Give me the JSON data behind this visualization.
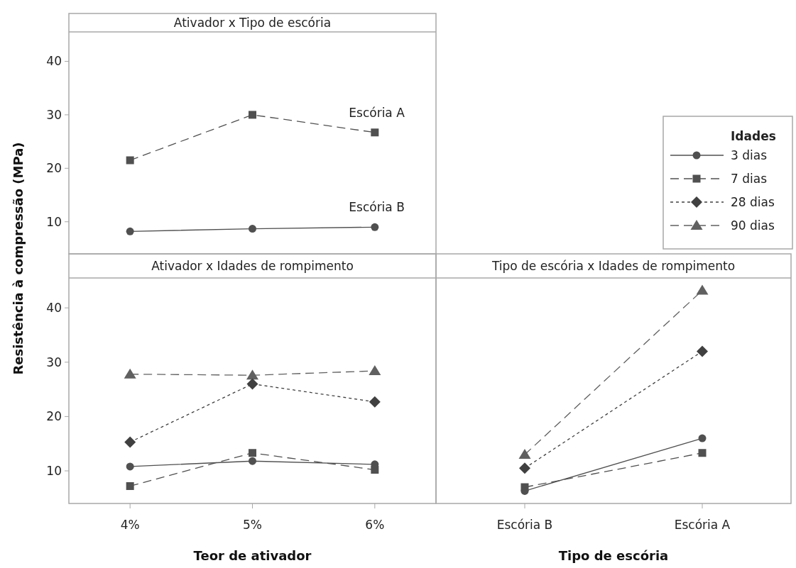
{
  "chart_data": [
    {
      "type": "line",
      "title": "Ativador x Tipo de escória",
      "ylabel": "Resistência à compressão (MPa)",
      "categories": [
        null,
        null,
        null
      ],
      "ylim": [
        4,
        45.5
      ],
      "yticks": [
        10,
        20,
        30,
        40
      ],
      "tick_labels": "y",
      "legend": false,
      "series": [
        {
          "name": "Escória A",
          "color": "#505050",
          "marker": "square",
          "line_style": "dashed",
          "values": [
            21.5,
            30,
            26.7
          ]
        },
        {
          "name": "Escória B",
          "color": "#505050",
          "marker": "circle",
          "line_style": "solid",
          "values": [
            8.2,
            8.7,
            9.0
          ]
        }
      ]
    },
    {
      "type": "line",
      "title": "Ativador x Idades de rompimento",
      "xlabel": "Teor de ativador",
      "categories": [
        "4%",
        "5%",
        "6%"
      ],
      "ylim": [
        4,
        45.5
      ],
      "yticks": [
        10,
        20,
        30,
        40
      ],
      "legend": false,
      "series": [
        {
          "color": "#505050",
          "marker": "circle",
          "line_style": "solid",
          "values": [
            10.8,
            11.8,
            11.2
          ]
        },
        {
          "color": "#505050",
          "marker": "square",
          "line_style": "dashed",
          "values": [
            7.2,
            13.3,
            10.2
          ]
        },
        {
          "color": "#404040",
          "marker": "diamond",
          "line_style": "dotted",
          "values": [
            15.3,
            26,
            22.7
          ]
        },
        {
          "color": "#606060",
          "marker": "triangle",
          "line_style": "dashed",
          "values": [
            27.8,
            27.6,
            28.4
          ]
        }
      ]
    },
    {
      "type": "line",
      "title": "Tipo de escória x Idades de rompimento",
      "xlabel": "Tipo de escória",
      "legend_title": "Idades",
      "legend": "top right",
      "categories": [
        "Escória B",
        "Escória A"
      ],
      "ylim": [
        4,
        45.5
      ],
      "tick_labels": "x",
      "series": [
        {
          "name": "3 dias",
          "color": "#505050",
          "marker": "circle",
          "line_style": "solid",
          "values": [
            6.3,
            16
          ]
        },
        {
          "name": "7 dias",
          "color": "#505050",
          "marker": "square",
          "line_style": "dashed",
          "values": [
            7,
            13.3
          ]
        },
        {
          "name": "28 dias",
          "color": "#404040",
          "marker": "diamond",
          "line_style": "dotted",
          "values": [
            10.5,
            32
          ]
        },
        {
          "name": "90 dias",
          "color": "#606060",
          "marker": "triangle",
          "line_style": "dashed",
          "values": [
            13,
            43.2
          ]
        }
      ]
    }
  ]
}
